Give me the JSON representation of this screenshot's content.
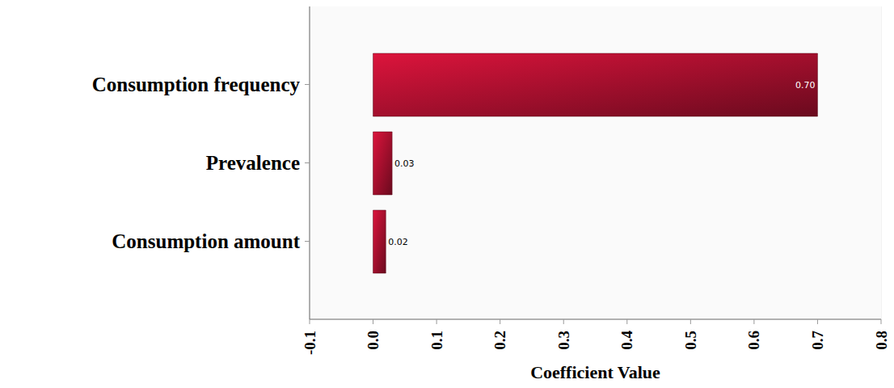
{
  "chart_data": {
    "type": "bar",
    "orientation": "horizontal",
    "categories": [
      "Consumption frequency",
      "Prevalence",
      "Consumption amount"
    ],
    "values": [
      0.7,
      0.03,
      0.02
    ],
    "value_labels": [
      "0.70",
      "0.03",
      "0.02"
    ],
    "data_labels": true,
    "color": "#dc143c",
    "x_label": "Coefficient Value",
    "xlim": [
      -0.1,
      0.8
    ],
    "xticks": [
      -0.1,
      {
        "value": 0,
        "label": "0.0"
      },
      0.1,
      0.2,
      0.3,
      0.4,
      0.5,
      0.6,
      0.7,
      0.8
    ],
    "grid": true
  }
}
